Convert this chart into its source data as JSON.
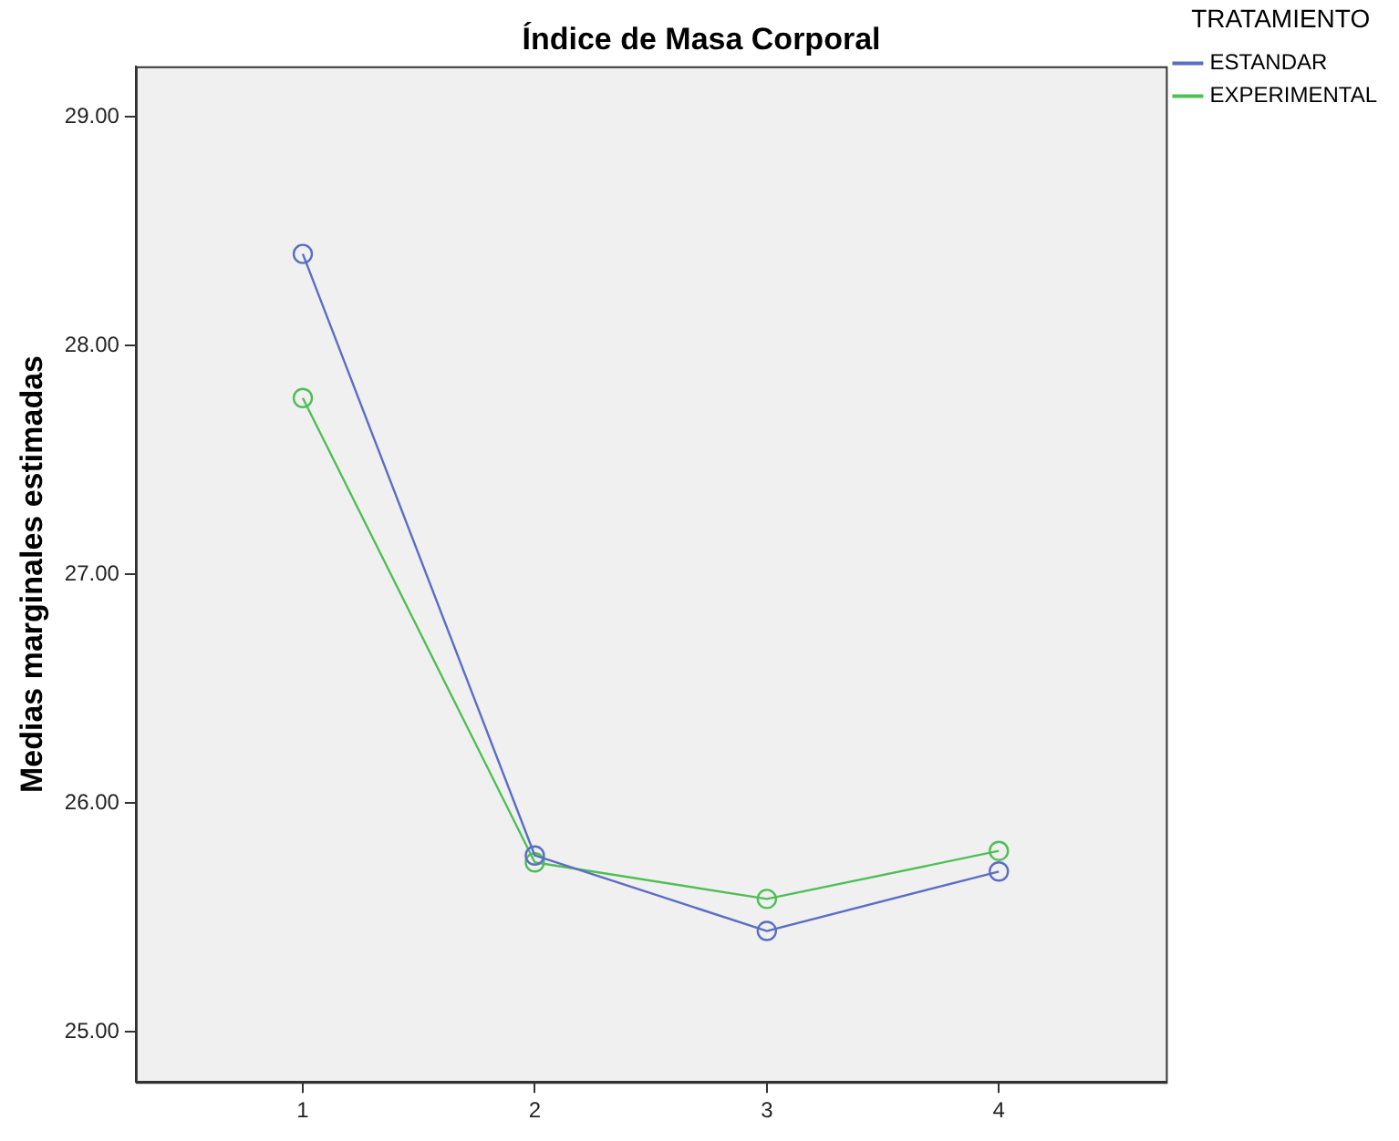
{
  "chart_data": {
    "type": "line",
    "title": "Índice de Masa Corporal",
    "ylabel": "Medias marginales estimadas",
    "legend_title": "TRATAMIENTO",
    "legend": "top right",
    "marker": "circle",
    "grid": false,
    "x": [
      1,
      2,
      3,
      4
    ],
    "xlim": [
      0.28,
      4.72
    ],
    "xticks": [
      1,
      2,
      3,
      4
    ],
    "ylim": [
      24.78,
      29.22
    ],
    "yticks": [
      {
        "value": 25,
        "label": "25.00"
      },
      {
        "value": 26,
        "label": "26.00"
      },
      {
        "value": 27,
        "label": "27.00"
      },
      {
        "value": 28,
        "label": "28.00"
      },
      {
        "value": 29,
        "label": "29.00"
      }
    ],
    "series": [
      {
        "name": "ESTANDAR",
        "color": "#5b6ec4",
        "values": [
          28.4,
          25.77,
          25.44,
          25.7
        ]
      },
      {
        "name": "EXPERIMENTAL",
        "color": "#4fbf55",
        "values": [
          27.77,
          25.74,
          25.58,
          25.79
        ]
      }
    ]
  }
}
